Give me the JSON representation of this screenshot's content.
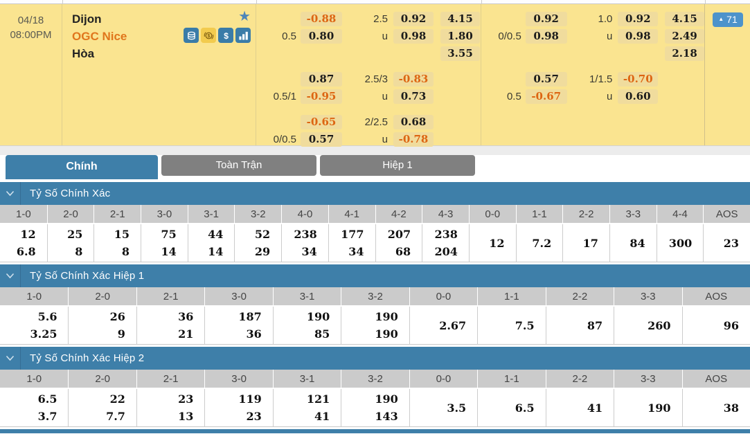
{
  "match": {
    "date": "04/18",
    "time": "08:00PM",
    "home": "Dijon",
    "away": "OGC Nice",
    "draw": "Hòa",
    "more_count": "71",
    "icons": [
      {
        "name": "cash-stack-icon",
        "style": "blue"
      },
      {
        "name": "coin-exchange-icon",
        "style": "yellow"
      },
      {
        "name": "dollar-icon",
        "style": "blue"
      },
      {
        "name": "bar-chart-icon",
        "style": "blue"
      }
    ]
  },
  "colors": {
    "panel_bg": "#fae490",
    "odds_box_bg": "#f0dc9d",
    "negative_odds": "#dd6512",
    "away_team": "#e0761c",
    "accent_blue": "#3e7fa9",
    "inactive_tab": "#808080",
    "table_header_bg": "#cbcbcb",
    "badge_blue": "#4d93cb",
    "star_blue": "#4e86b8"
  },
  "odds": {
    "full_time_blocks": [
      [
        {
          "l": "",
          "h": "-0.88",
          "ol": "2.5",
          "o": "0.92",
          "x": "4.15"
        },
        {
          "l": "0.5",
          "h": "0.80",
          "ol": "u",
          "o": "0.98",
          "x": "1.80"
        },
        {
          "l": "",
          "h": null,
          "ol": "",
          "o": null,
          "x": "3.55"
        }
      ],
      [
        {
          "l": "",
          "h": "0.87",
          "ol": "2.5/3",
          "o": "-0.83",
          "x": null
        },
        {
          "l": "0.5/1",
          "h": "-0.95",
          "ol": "u",
          "o": "0.73",
          "x": null
        }
      ],
      [
        {
          "l": "",
          "h": "-0.65",
          "ol": "2/2.5",
          "o": "0.68",
          "x": null
        },
        {
          "l": "0/0.5",
          "h": "0.57",
          "ol": "u",
          "o": "-0.78",
          "x": null
        }
      ]
    ],
    "first_half_blocks": [
      [
        {
          "l": "",
          "h": "0.92",
          "ol": "1.0",
          "o": "0.92",
          "x": "4.15"
        },
        {
          "l": "0/0.5",
          "h": "0.98",
          "ol": "u",
          "o": "0.98",
          "x": "2.49"
        },
        {
          "l": "",
          "h": null,
          "ol": "",
          "o": null,
          "x": "2.18"
        }
      ],
      [
        {
          "l": "",
          "h": "0.57",
          "ol": "1/1.5",
          "o": "-0.70",
          "x": null
        },
        {
          "l": "0.5",
          "h": "-0.67",
          "ol": "u",
          "o": "0.60",
          "x": null
        }
      ]
    ]
  },
  "tabs": [
    {
      "label": "Chính",
      "active": true
    },
    {
      "label": "Toàn Trận",
      "active": false
    },
    {
      "label": "Hiệp 1",
      "active": false
    }
  ],
  "sections": [
    {
      "title": "Tỷ Số Chính Xác",
      "headers": [
        "1-0",
        "2-0",
        "2-1",
        "3-0",
        "3-1",
        "3-2",
        "4-0",
        "4-1",
        "4-2",
        "4-3",
        "0-0",
        "1-1",
        "2-2",
        "3-3",
        "4-4",
        "AOS"
      ],
      "values": [
        [
          "12",
          "6.8"
        ],
        [
          "25",
          "8"
        ],
        [
          "15",
          "8"
        ],
        [
          "75",
          "14"
        ],
        [
          "44",
          "14"
        ],
        [
          "52",
          "29"
        ],
        [
          "238",
          "34"
        ],
        [
          "177",
          "34"
        ],
        [
          "207",
          "68"
        ],
        [
          "238",
          "204"
        ],
        [
          "12"
        ],
        [
          "7.2"
        ],
        [
          "17"
        ],
        [
          "84"
        ],
        [
          "300"
        ],
        [
          "23"
        ]
      ]
    },
    {
      "title": "Tỷ Số Chính Xác Hiệp 1",
      "headers": [
        "1-0",
        "2-0",
        "2-1",
        "3-0",
        "3-1",
        "3-2",
        "0-0",
        "1-1",
        "2-2",
        "3-3",
        "AOS"
      ],
      "values": [
        [
          "5.6",
          "3.25"
        ],
        [
          "26",
          "9"
        ],
        [
          "36",
          "21"
        ],
        [
          "187",
          "36"
        ],
        [
          "190",
          "85"
        ],
        [
          "190",
          "190"
        ],
        [
          "2.67"
        ],
        [
          "7.5"
        ],
        [
          "87"
        ],
        [
          "260"
        ],
        [
          "96"
        ]
      ]
    },
    {
      "title": "Tỷ Số Chính Xác Hiệp 2",
      "headers": [
        "1-0",
        "2-0",
        "2-1",
        "3-0",
        "3-1",
        "3-2",
        "0-0",
        "1-1",
        "2-2",
        "3-3",
        "AOS"
      ],
      "values": [
        [
          "6.5",
          "3.7"
        ],
        [
          "22",
          "7.7"
        ],
        [
          "23",
          "13"
        ],
        [
          "119",
          "23"
        ],
        [
          "121",
          "41"
        ],
        [
          "190",
          "143"
        ],
        [
          "3.5"
        ],
        [
          "6.5"
        ],
        [
          "41"
        ],
        [
          "190"
        ],
        [
          "38"
        ]
      ]
    }
  ]
}
